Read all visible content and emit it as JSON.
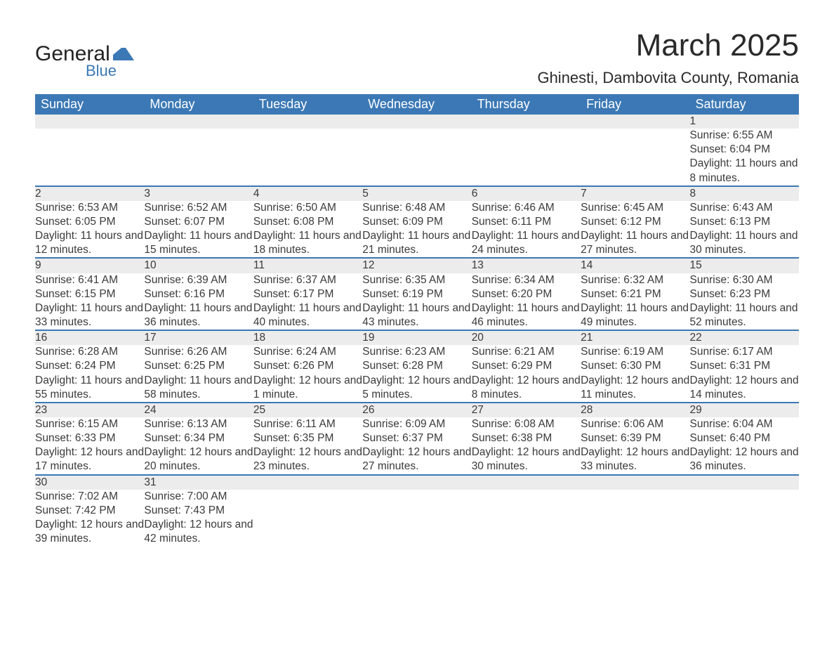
{
  "logo": {
    "word1": "General",
    "word2": "Blue",
    "accent_color": "#3b78b5"
  },
  "title": "March 2025",
  "location": "Ghinesti, Dambovita County, Romania",
  "colors": {
    "header_bg": "#3b78b5",
    "header_text": "#ffffff",
    "daynum_bg": "#ececec",
    "row_border": "#3b78b5",
    "body_text": "#3a3a3a",
    "background": "#ffffff"
  },
  "typography": {
    "title_fontsize": 44,
    "location_fontsize": 22,
    "dayheader_fontsize": 18,
    "daynum_fontsize": 17,
    "detail_fontsize": 15.5,
    "font_family": "Arial"
  },
  "calendar": {
    "type": "table",
    "day_headers": [
      "Sunday",
      "Monday",
      "Tuesday",
      "Wednesday",
      "Thursday",
      "Friday",
      "Saturday"
    ],
    "labels": {
      "sunrise": "Sunrise:",
      "sunset": "Sunset:",
      "daylight": "Daylight:"
    },
    "weeks": [
      [
        null,
        null,
        null,
        null,
        null,
        null,
        {
          "n": "1",
          "sr": "6:55 AM",
          "ss": "6:04 PM",
          "dl": "11 hours and 8 minutes."
        }
      ],
      [
        {
          "n": "2",
          "sr": "6:53 AM",
          "ss": "6:05 PM",
          "dl": "11 hours and 12 minutes."
        },
        {
          "n": "3",
          "sr": "6:52 AM",
          "ss": "6:07 PM",
          "dl": "11 hours and 15 minutes."
        },
        {
          "n": "4",
          "sr": "6:50 AM",
          "ss": "6:08 PM",
          "dl": "11 hours and 18 minutes."
        },
        {
          "n": "5",
          "sr": "6:48 AM",
          "ss": "6:09 PM",
          "dl": "11 hours and 21 minutes."
        },
        {
          "n": "6",
          "sr": "6:46 AM",
          "ss": "6:11 PM",
          "dl": "11 hours and 24 minutes."
        },
        {
          "n": "7",
          "sr": "6:45 AM",
          "ss": "6:12 PM",
          "dl": "11 hours and 27 minutes."
        },
        {
          "n": "8",
          "sr": "6:43 AM",
          "ss": "6:13 PM",
          "dl": "11 hours and 30 minutes."
        }
      ],
      [
        {
          "n": "9",
          "sr": "6:41 AM",
          "ss": "6:15 PM",
          "dl": "11 hours and 33 minutes."
        },
        {
          "n": "10",
          "sr": "6:39 AM",
          "ss": "6:16 PM",
          "dl": "11 hours and 36 minutes."
        },
        {
          "n": "11",
          "sr": "6:37 AM",
          "ss": "6:17 PM",
          "dl": "11 hours and 40 minutes."
        },
        {
          "n": "12",
          "sr": "6:35 AM",
          "ss": "6:19 PM",
          "dl": "11 hours and 43 minutes."
        },
        {
          "n": "13",
          "sr": "6:34 AM",
          "ss": "6:20 PM",
          "dl": "11 hours and 46 minutes."
        },
        {
          "n": "14",
          "sr": "6:32 AM",
          "ss": "6:21 PM",
          "dl": "11 hours and 49 minutes."
        },
        {
          "n": "15",
          "sr": "6:30 AM",
          "ss": "6:23 PM",
          "dl": "11 hours and 52 minutes."
        }
      ],
      [
        {
          "n": "16",
          "sr": "6:28 AM",
          "ss": "6:24 PM",
          "dl": "11 hours and 55 minutes."
        },
        {
          "n": "17",
          "sr": "6:26 AM",
          "ss": "6:25 PM",
          "dl": "11 hours and 58 minutes."
        },
        {
          "n": "18",
          "sr": "6:24 AM",
          "ss": "6:26 PM",
          "dl": "12 hours and 1 minute."
        },
        {
          "n": "19",
          "sr": "6:23 AM",
          "ss": "6:28 PM",
          "dl": "12 hours and 5 minutes."
        },
        {
          "n": "20",
          "sr": "6:21 AM",
          "ss": "6:29 PM",
          "dl": "12 hours and 8 minutes."
        },
        {
          "n": "21",
          "sr": "6:19 AM",
          "ss": "6:30 PM",
          "dl": "12 hours and 11 minutes."
        },
        {
          "n": "22",
          "sr": "6:17 AM",
          "ss": "6:31 PM",
          "dl": "12 hours and 14 minutes."
        }
      ],
      [
        {
          "n": "23",
          "sr": "6:15 AM",
          "ss": "6:33 PM",
          "dl": "12 hours and 17 minutes."
        },
        {
          "n": "24",
          "sr": "6:13 AM",
          "ss": "6:34 PM",
          "dl": "12 hours and 20 minutes."
        },
        {
          "n": "25",
          "sr": "6:11 AM",
          "ss": "6:35 PM",
          "dl": "12 hours and 23 minutes."
        },
        {
          "n": "26",
          "sr": "6:09 AM",
          "ss": "6:37 PM",
          "dl": "12 hours and 27 minutes."
        },
        {
          "n": "27",
          "sr": "6:08 AM",
          "ss": "6:38 PM",
          "dl": "12 hours and 30 minutes."
        },
        {
          "n": "28",
          "sr": "6:06 AM",
          "ss": "6:39 PM",
          "dl": "12 hours and 33 minutes."
        },
        {
          "n": "29",
          "sr": "6:04 AM",
          "ss": "6:40 PM",
          "dl": "12 hours and 36 minutes."
        }
      ],
      [
        {
          "n": "30",
          "sr": "7:02 AM",
          "ss": "7:42 PM",
          "dl": "12 hours and 39 minutes."
        },
        {
          "n": "31",
          "sr": "7:00 AM",
          "ss": "7:43 PM",
          "dl": "12 hours and 42 minutes."
        },
        null,
        null,
        null,
        null,
        null
      ]
    ]
  }
}
